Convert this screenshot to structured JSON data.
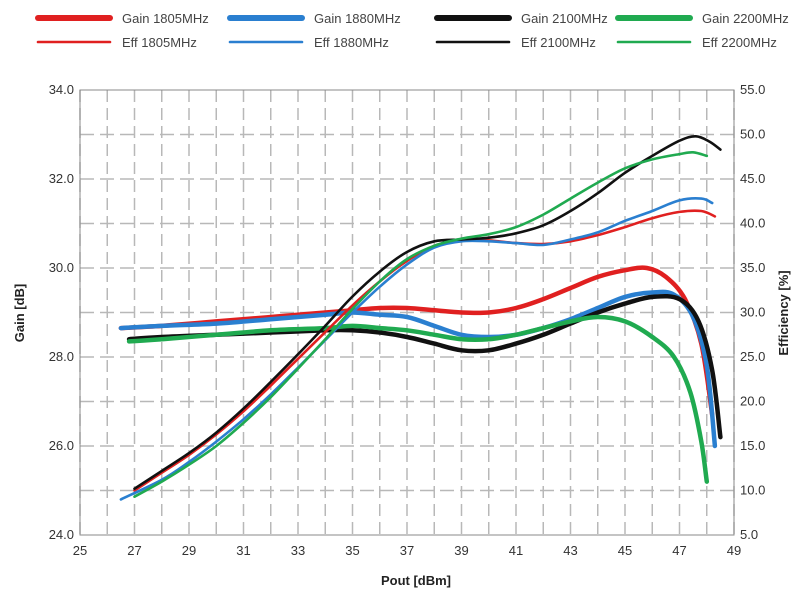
{
  "chart_data": {
    "type": "line",
    "title": "",
    "xlabel": "Pout [dBm]",
    "ylabel_left": "Gain [dB]",
    "ylabel_right": "Efficiency [%]",
    "xlim": [
      25,
      49
    ],
    "ylim_left": [
      24,
      34
    ],
    "ylim_right": [
      5,
      55
    ],
    "x_ticks": [
      "25",
      "27",
      "29",
      "31",
      "33",
      "35",
      "37",
      "39",
      "41",
      "43",
      "45",
      "47",
      "49"
    ],
    "y_left_ticks": [
      "24.0",
      "26.0",
      "28.0",
      "30.0",
      "32.0",
      "34.0"
    ],
    "y_right_ticks": [
      "5.0",
      "10.0",
      "15.0",
      "20.0",
      "25.0",
      "30.0",
      "35.0",
      "40.0",
      "45.0",
      "50.0",
      "55.0"
    ],
    "grid": true,
    "legend_position": "top",
    "series": [
      {
        "name": "Gain 1805MHz",
        "axis": "left",
        "color": "#e02020",
        "style": "thick",
        "x": [
          26.5,
          28,
          30,
          32,
          34,
          35,
          36,
          37,
          38,
          39,
          40,
          41,
          42,
          43,
          44,
          45,
          45.8,
          46.5,
          47.2,
          47.8,
          48.2
        ],
        "y": [
          28.65,
          28.7,
          28.8,
          28.9,
          29.0,
          29.05,
          29.1,
          29.1,
          29.05,
          29.0,
          29.0,
          29.1,
          29.3,
          29.55,
          29.8,
          29.95,
          30.0,
          29.8,
          29.3,
          28.3,
          26.7
        ]
      },
      {
        "name": "Gain 1880MHz",
        "axis": "left",
        "color": "#2a7fd0",
        "style": "thick",
        "x": [
          26.5,
          28,
          30,
          32,
          34,
          35,
          36,
          37,
          38,
          39,
          40,
          41,
          42,
          43,
          44,
          45,
          46,
          46.8,
          47.5,
          48,
          48.3
        ],
        "y": [
          28.65,
          28.7,
          28.75,
          28.85,
          28.95,
          29.0,
          28.95,
          28.9,
          28.7,
          28.5,
          28.45,
          28.5,
          28.65,
          28.85,
          29.1,
          29.35,
          29.45,
          29.4,
          28.9,
          27.8,
          26.0
        ]
      },
      {
        "name": "Gain 2100MHz",
        "axis": "left",
        "color": "#111111",
        "style": "thick",
        "x": [
          26.8,
          28,
          30,
          32,
          34,
          35,
          36,
          37,
          38,
          39,
          40,
          41,
          42,
          43,
          44,
          45,
          46,
          47,
          47.7,
          48.2,
          48.5
        ],
        "y": [
          28.4,
          28.45,
          28.5,
          28.55,
          28.6,
          28.6,
          28.55,
          28.45,
          28.3,
          28.15,
          28.15,
          28.3,
          28.5,
          28.75,
          29.0,
          29.2,
          29.35,
          29.3,
          28.8,
          27.7,
          26.2
        ]
      },
      {
        "name": "Gain 2200MHz",
        "axis": "left",
        "color": "#20aa50",
        "style": "thick",
        "x": [
          26.8,
          28,
          30,
          32,
          34,
          35,
          36,
          37,
          38,
          39,
          40,
          41,
          42,
          43,
          44,
          45,
          46,
          46.8,
          47.4,
          47.8,
          48.0
        ],
        "y": [
          28.35,
          28.4,
          28.5,
          28.6,
          28.65,
          28.7,
          28.65,
          28.6,
          28.5,
          28.4,
          28.4,
          28.5,
          28.65,
          28.8,
          28.9,
          28.8,
          28.45,
          28.0,
          27.2,
          26.1,
          25.2
        ]
      },
      {
        "name": "Eff 1805MHz",
        "axis": "right",
        "color": "#e02020",
        "style": "thin",
        "x": [
          27,
          28,
          29,
          30,
          31,
          32,
          33,
          34,
          35,
          36,
          37,
          38,
          39,
          40,
          41,
          42,
          43,
          44,
          45,
          46,
          47,
          47.8,
          48.3
        ],
        "y": [
          10.0,
          12.0,
          14.0,
          16.3,
          18.9,
          21.8,
          24.8,
          27.8,
          30.8,
          33.5,
          35.8,
          37.5,
          38.1,
          38.1,
          37.8,
          37.7,
          38.0,
          38.7,
          39.6,
          40.6,
          41.3,
          41.4,
          40.8
        ]
      },
      {
        "name": "Eff 1880MHz",
        "axis": "right",
        "color": "#2a7fd0",
        "style": "thin",
        "x": [
          26.5,
          28,
          29,
          30,
          31,
          32,
          33,
          34,
          35,
          36,
          37,
          38,
          39,
          40,
          41,
          42,
          43,
          44,
          45,
          46,
          47,
          47.8,
          48.2
        ],
        "y": [
          9.0,
          11.2,
          13.2,
          15.5,
          18.0,
          20.8,
          23.8,
          26.9,
          30.0,
          32.9,
          35.4,
          37.3,
          38.0,
          38.0,
          37.8,
          37.6,
          38.2,
          39.0,
          40.3,
          41.4,
          42.6,
          42.8,
          42.3
        ]
      },
      {
        "name": "Eff 2100MHz",
        "axis": "right",
        "color": "#111111",
        "style": "thin",
        "x": [
          27,
          28,
          29,
          30,
          31,
          32,
          33,
          34,
          35,
          36,
          37,
          38,
          39,
          40,
          41,
          42,
          43,
          44,
          45,
          46,
          47,
          47.6,
          48.1,
          48.5
        ],
        "y": [
          10.2,
          12.2,
          14.2,
          16.5,
          19.2,
          22.2,
          25.3,
          28.5,
          31.8,
          34.6,
          36.8,
          38.0,
          38.2,
          38.4,
          38.9,
          39.8,
          41.4,
          43.4,
          45.7,
          47.6,
          49.3,
          49.8,
          49.2,
          48.3
        ]
      },
      {
        "name": "Eff 2200MHz",
        "axis": "right",
        "color": "#20aa50",
        "style": "thin",
        "x": [
          27,
          28,
          29,
          30,
          31,
          32,
          33,
          34,
          35,
          36,
          37,
          38,
          39,
          40,
          41,
          42,
          43,
          44,
          45,
          46,
          47,
          47.5,
          48
        ],
        "y": [
          9.3,
          11.0,
          12.9,
          15.0,
          17.6,
          20.5,
          23.7,
          27.0,
          30.4,
          33.5,
          36.0,
          37.5,
          38.3,
          38.8,
          39.6,
          41.0,
          42.8,
          44.6,
          46.2,
          47.2,
          47.8,
          48.0,
          47.6
        ]
      }
    ]
  }
}
